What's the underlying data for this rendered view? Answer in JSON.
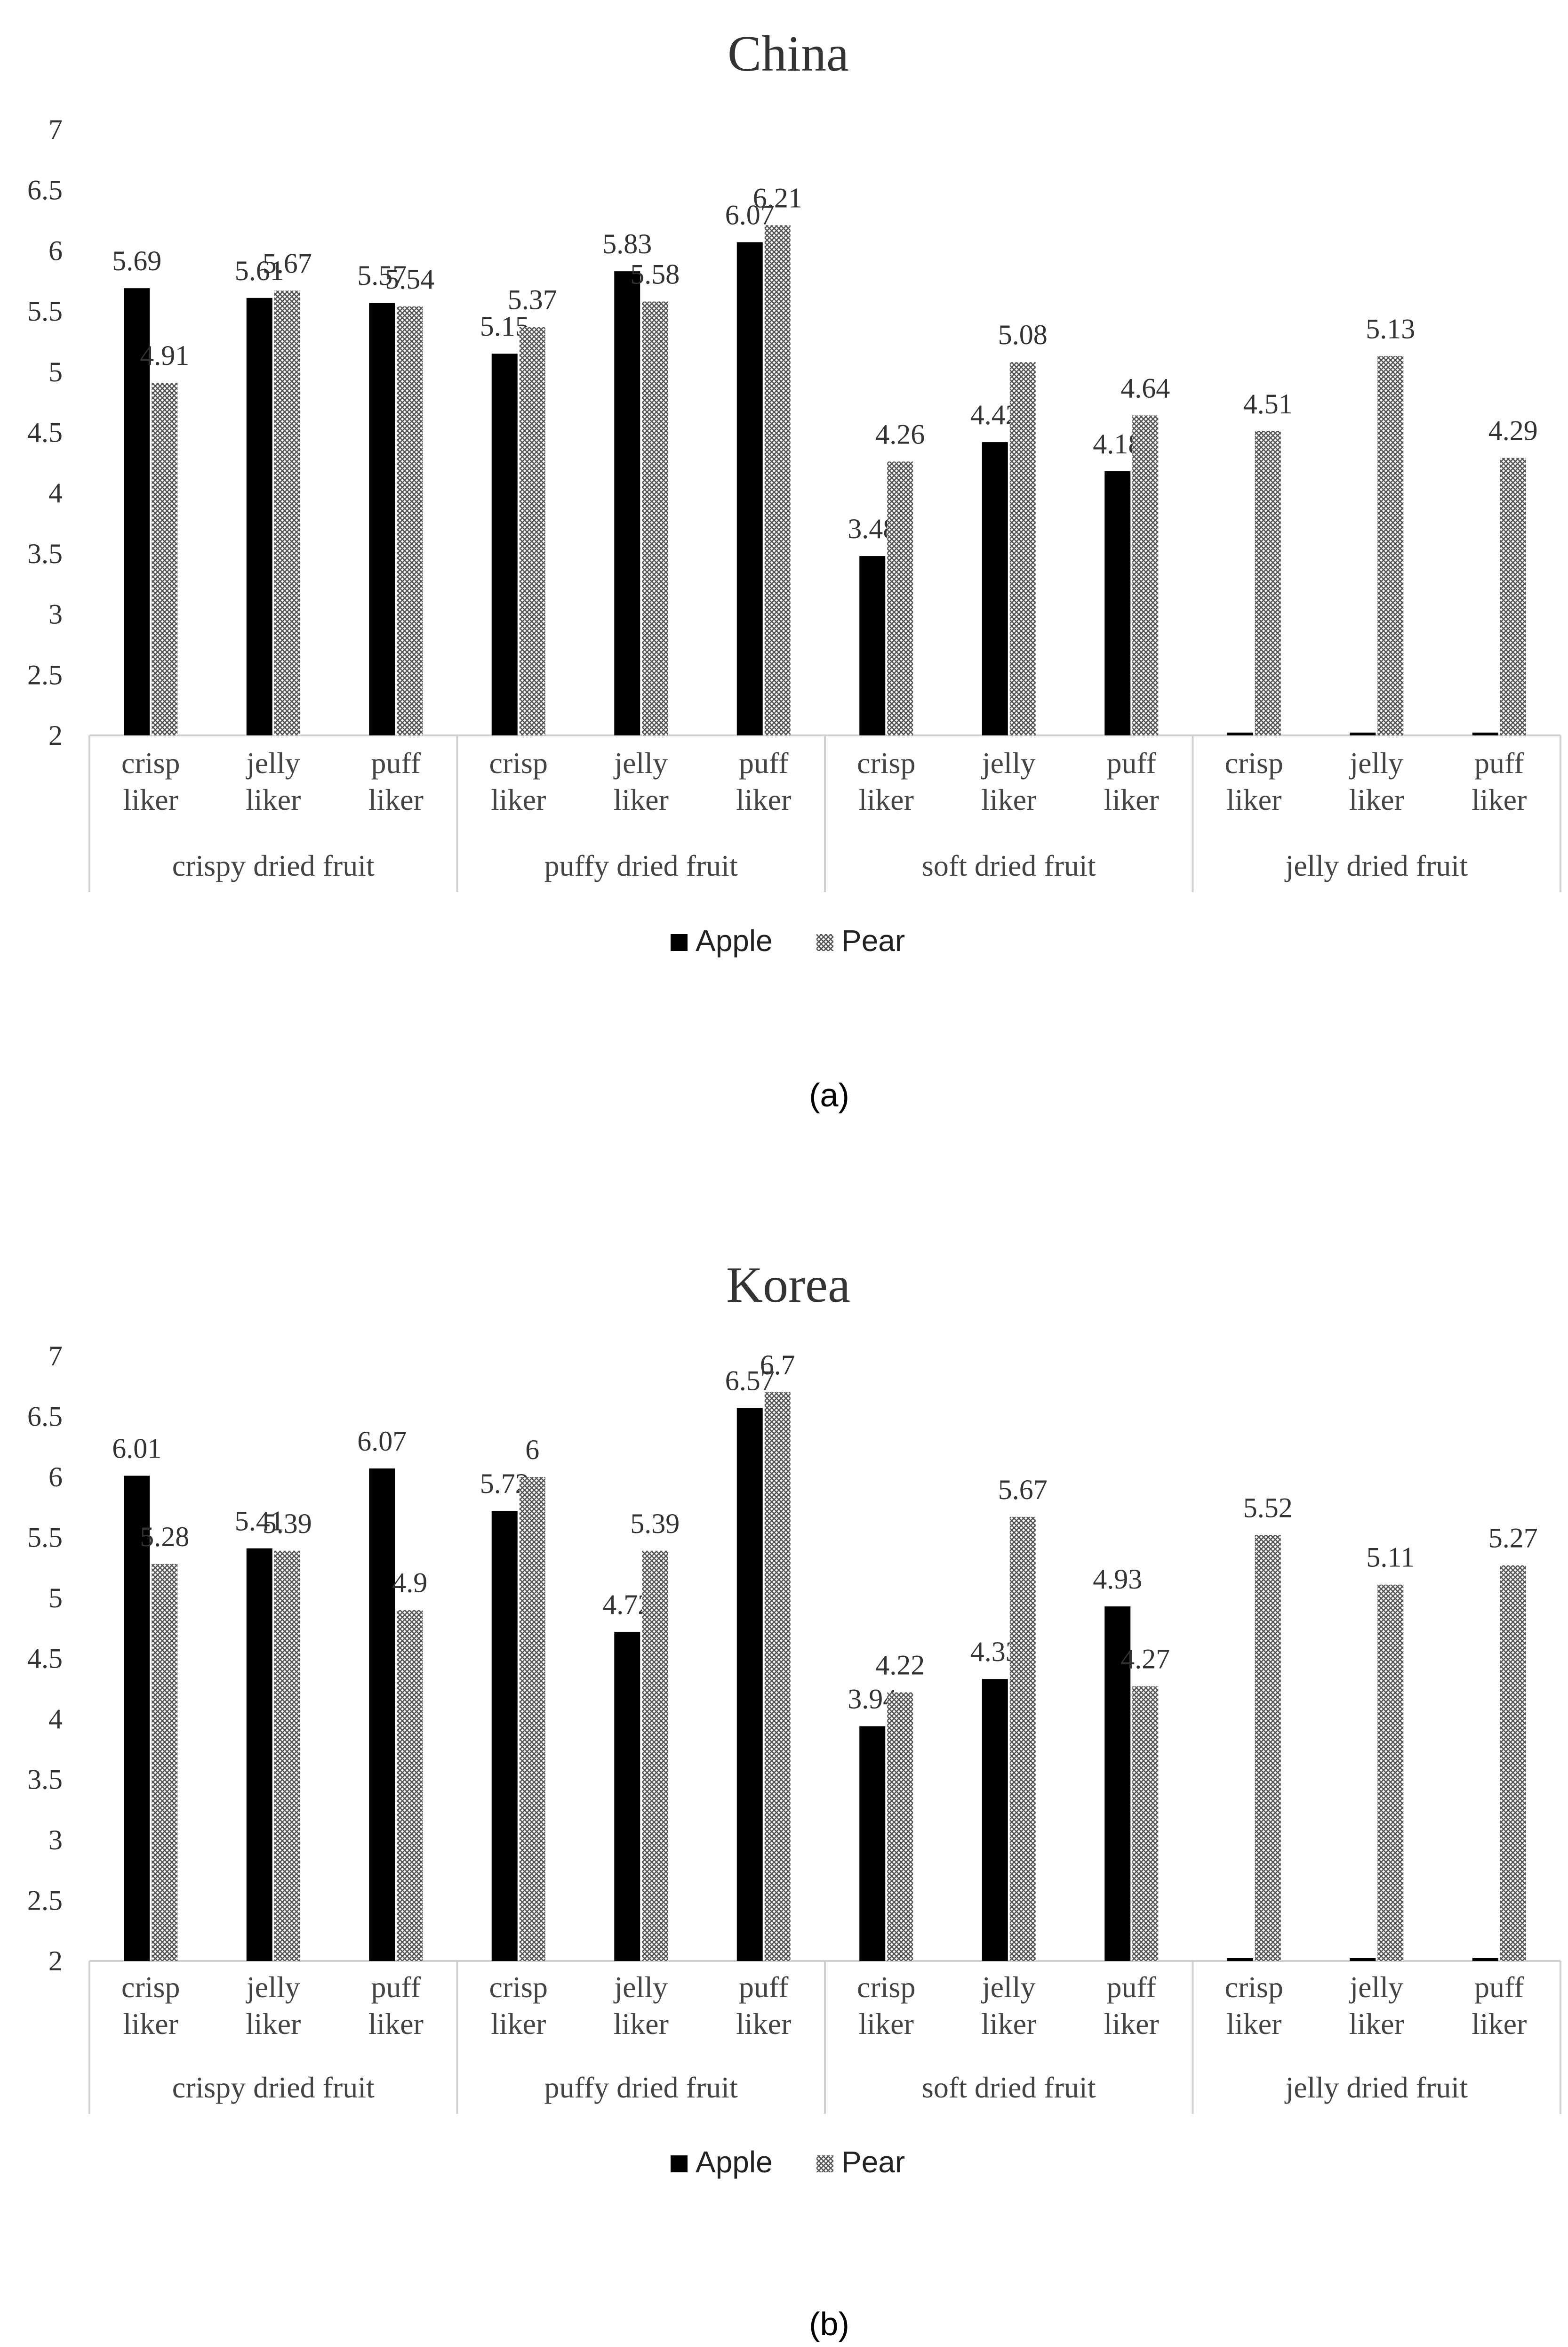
{
  "chart_data": [
    {
      "type": "bar",
      "title": "China",
      "caption": "(a)",
      "ylim": [
        2,
        7
      ],
      "yticks": [
        "2",
        "2.5",
        "3",
        "3.5",
        "4",
        "4.5",
        "5",
        "5.5",
        "6",
        "6.5",
        "7"
      ],
      "groups": [
        "crispy dried fruit",
        "puffy dried fruit",
        "soft dried fruit",
        "jelly dried fruit"
      ],
      "subcategories": [
        "crisp liker",
        "jelly liker",
        "puff liker"
      ],
      "legend": [
        "Apple",
        "Pear"
      ],
      "series": [
        {
          "name": "Apple",
          "color": "#000000",
          "values": [
            5.69,
            5.61,
            5.57,
            5.15,
            5.83,
            6.07,
            3.48,
            4.42,
            4.18,
            null,
            null,
            null
          ]
        },
        {
          "name": "Pear",
          "color": "#9a9a9a",
          "values": [
            4.91,
            5.67,
            5.54,
            5.37,
            5.58,
            6.21,
            4.26,
            5.08,
            4.64,
            4.51,
            5.13,
            4.29
          ]
        }
      ]
    },
    {
      "type": "bar",
      "title": "Korea",
      "caption": "(b)",
      "ylim": [
        2,
        7
      ],
      "yticks": [
        "2",
        "2.5",
        "3",
        "3.5",
        "4",
        "4.5",
        "5",
        "5.5",
        "6",
        "6.5",
        "7"
      ],
      "groups": [
        "crispy dried fruit",
        "puffy dried fruit",
        "soft dried fruit",
        "jelly dried fruit"
      ],
      "subcategories": [
        "crisp liker",
        "jelly liker",
        "puff liker"
      ],
      "legend": [
        "Apple",
        "Pear"
      ],
      "series": [
        {
          "name": "Apple",
          "color": "#000000",
          "values": [
            6.01,
            5.41,
            6.07,
            5.72,
            4.72,
            6.57,
            3.94,
            4.33,
            4.93,
            null,
            null,
            null
          ]
        },
        {
          "name": "Pear",
          "color": "#9a9a9a",
          "values": [
            5.28,
            5.39,
            4.9,
            6,
            5.39,
            6.7,
            4.22,
            5.67,
            4.27,
            5.52,
            5.11,
            5.27
          ]
        }
      ]
    }
  ]
}
